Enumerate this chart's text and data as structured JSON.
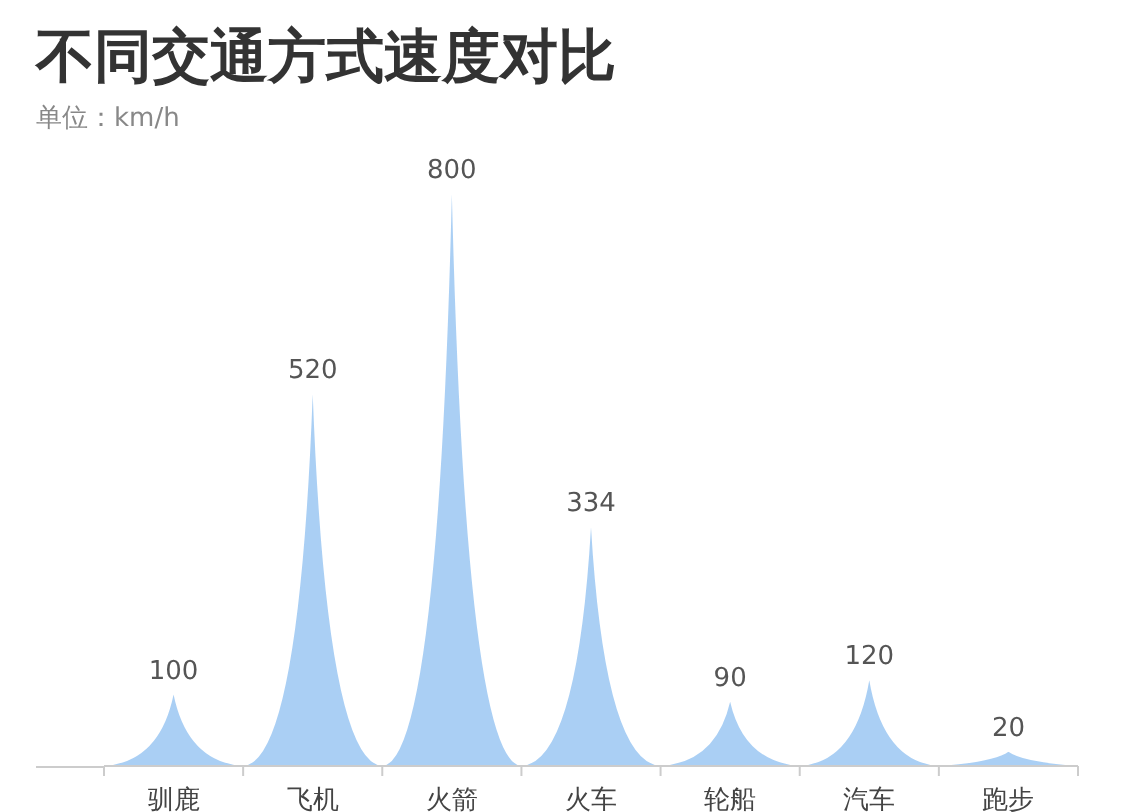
{
  "chart_data": {
    "type": "bar",
    "title": "不同交通方式速度对比",
    "subtitle": "单位：km/h",
    "categories": [
      "驯鹿",
      "飞机",
      "火箭",
      "火车",
      "轮船",
      "汽车",
      "跑步"
    ],
    "values": [
      100,
      520,
      800,
      334,
      90,
      120,
      20
    ],
    "color": "#7db5ee",
    "data_labels": true
  }
}
